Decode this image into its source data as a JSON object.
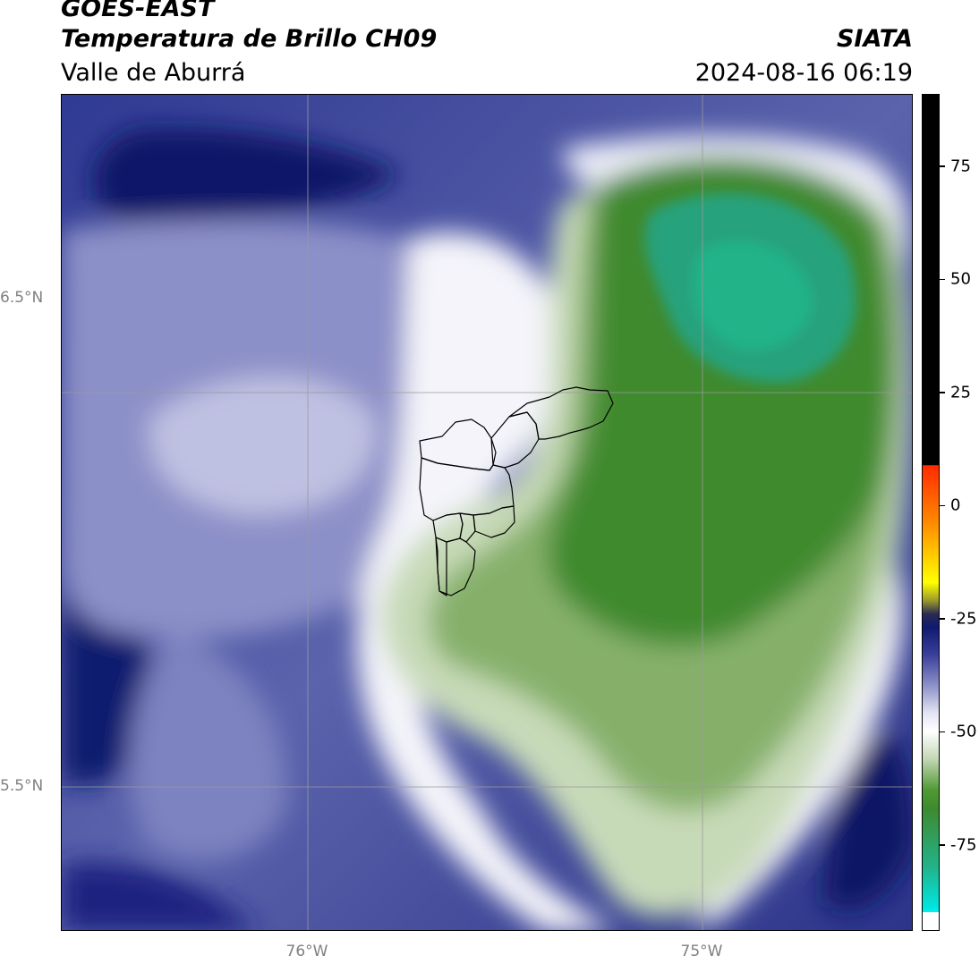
{
  "header": {
    "satellite": "GOES-EAST",
    "product": "Temperatura de Brillo CH09",
    "region": "Valle de Aburrá",
    "agency": "SIATA",
    "datetime": "2024-08-16 06:19"
  },
  "map": {
    "lat_ticks": [
      {
        "label": "6.5°N",
        "value": 6.5
      },
      {
        "label": "5.5°N",
        "value": 5.5
      }
    ],
    "lon_ticks": [
      {
        "label": "76°W",
        "value": -76.0
      },
      {
        "label": "75°W",
        "value": -75.0
      }
    ],
    "gridlines": true,
    "colors": {
      "cold_cloud_green": "#3f8a2e",
      "cyan_core": "#22b38a",
      "clear_white": "#ffffff",
      "navy": "#0a1465"
    }
  },
  "colorbar": {
    "ticks": [
      {
        "label": "75",
        "value": 75
      },
      {
        "label": "50",
        "value": 50
      },
      {
        "label": "25",
        "value": 25
      },
      {
        "label": "0",
        "value": 0
      },
      {
        "label": "-25",
        "value": -25
      },
      {
        "label": "-50",
        "value": -50
      },
      {
        "label": "-75",
        "value": -75
      }
    ],
    "range": [
      -94,
      91
    ]
  }
}
